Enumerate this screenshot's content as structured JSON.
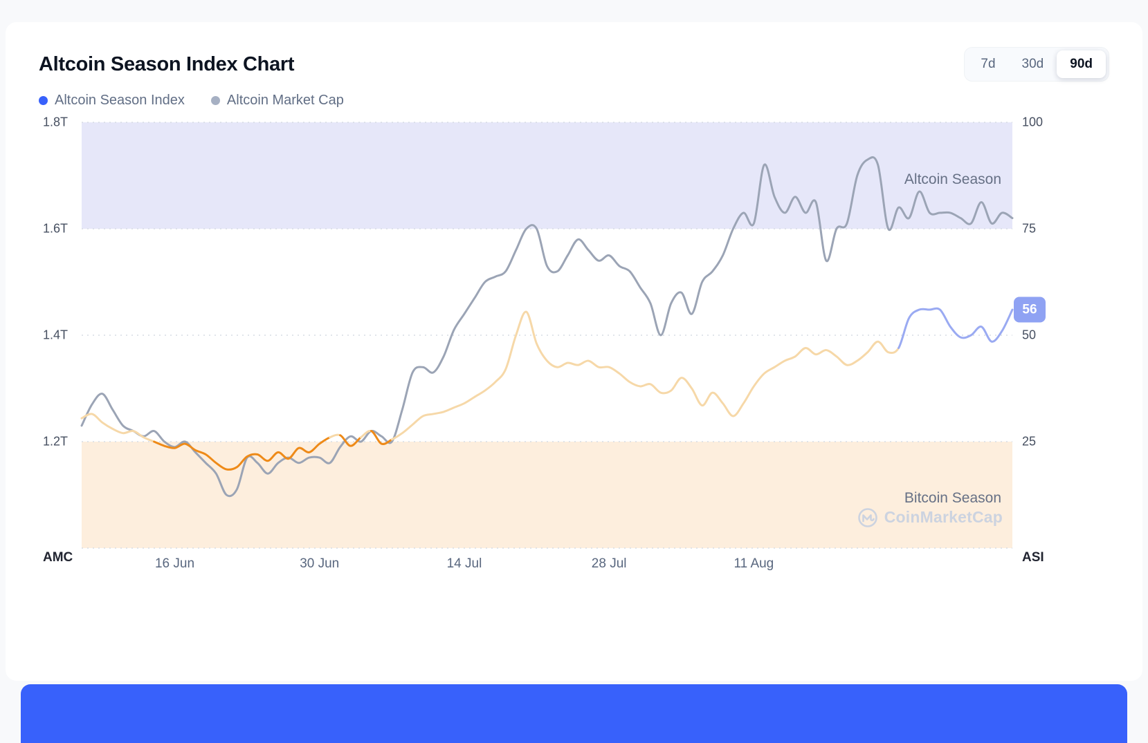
{
  "header": {
    "title": "Altcoin Season Index Chart"
  },
  "range_selector": {
    "options": [
      "7d",
      "30d",
      "90d"
    ],
    "selected": "90d"
  },
  "legend": {
    "items": [
      {
        "label": "Altcoin Season Index",
        "dot_color": "#3861fb"
      },
      {
        "label": "Altcoin Market Cap",
        "dot_color": "#a6b0c3"
      }
    ]
  },
  "badge": {
    "value": "56",
    "color": "#8fa2f3"
  },
  "watermark": {
    "brand": "CoinMarketCap"
  },
  "footer_accent_color": "#3861fb",
  "chart_data": {
    "type": "line",
    "title": "Altcoin Season Index Chart",
    "days_total": 90,
    "x_ticks": [
      {
        "label": "16 Jun",
        "day": 9
      },
      {
        "label": "30 Jun",
        "day": 23
      },
      {
        "label": "14 Jul",
        "day": 37
      },
      {
        "label": "28 Jul",
        "day": 51
      },
      {
        "label": "11 Aug",
        "day": 65
      }
    ],
    "left_axis": {
      "label": "AMC",
      "min": 1.0,
      "max": 1.8,
      "ticks": [
        "1.8T",
        "1.6T",
        "1.4T",
        "1.2T"
      ],
      "tick_values": [
        1.8,
        1.6,
        1.4,
        1.2
      ]
    },
    "right_axis": {
      "label": "ASI",
      "min": 0,
      "max": 100,
      "ticks": [
        100,
        75,
        50,
        25
      ]
    },
    "bands": [
      {
        "name": "Altcoin Season",
        "from": 75,
        "to": 100,
        "color": "#e6e7f9"
      },
      {
        "name": "Bitcoin Season",
        "from": 0,
        "to": 25,
        "color": "#fdeedd"
      }
    ],
    "grid_color": "#d6dbe4",
    "series": [
      {
        "name": "Altcoin Season Index",
        "axis": "right",
        "color_normal": "#f6d8a8",
        "color_below_25": "#ee8a18",
        "color_recent": "#9aaaf2",
        "recent_start_index": 79,
        "values": [
          30.5,
          31.5,
          29.5,
          28,
          27,
          27.5,
          26,
          25,
          24,
          23.5,
          24.5,
          23,
          22,
          20,
          18.5,
          19,
          21.5,
          22,
          20.5,
          22.5,
          21,
          23.5,
          22.5,
          24.5,
          26,
          26.5,
          24,
          26,
          27.5,
          24.5,
          25.5,
          27,
          29,
          31,
          31.5,
          32,
          33,
          34,
          35.5,
          37,
          39,
          42,
          50,
          55.5,
          48,
          44,
          42.5,
          43.5,
          43,
          44,
          42.5,
          42.5,
          41,
          39,
          38,
          38.5,
          36.5,
          37,
          40,
          37.5,
          33.5,
          36.5,
          34,
          31,
          34,
          38,
          41,
          42.5,
          44,
          45,
          47,
          45.5,
          46.5,
          45,
          43,
          44,
          46,
          48.5,
          46,
          47,
          54,
          56,
          56,
          56,
          52,
          49.5,
          50,
          52,
          48.5,
          51,
          56
        ]
      },
      {
        "name": "Altcoin Market Cap",
        "axis": "left",
        "color": "#9ba4b5",
        "values": [
          1.23,
          1.27,
          1.29,
          1.26,
          1.23,
          1.22,
          1.21,
          1.22,
          1.2,
          1.19,
          1.2,
          1.18,
          1.16,
          1.14,
          1.1,
          1.11,
          1.17,
          1.16,
          1.14,
          1.16,
          1.17,
          1.16,
          1.17,
          1.17,
          1.16,
          1.19,
          1.21,
          1.2,
          1.22,
          1.21,
          1.2,
          1.26,
          1.33,
          1.34,
          1.33,
          1.36,
          1.41,
          1.44,
          1.47,
          1.5,
          1.51,
          1.52,
          1.56,
          1.6,
          1.6,
          1.53,
          1.52,
          1.55,
          1.58,
          1.56,
          1.54,
          1.55,
          1.53,
          1.52,
          1.49,
          1.46,
          1.4,
          1.46,
          1.48,
          1.44,
          1.5,
          1.52,
          1.55,
          1.6,
          1.63,
          1.61,
          1.72,
          1.66,
          1.63,
          1.66,
          1.63,
          1.65,
          1.54,
          1.6,
          1.61,
          1.7,
          1.73,
          1.72,
          1.6,
          1.64,
          1.62,
          1.67,
          1.63,
          1.63,
          1.63,
          1.62,
          1.61,
          1.65,
          1.61,
          1.63,
          1.62
        ]
      }
    ],
    "current_value": 56
  }
}
